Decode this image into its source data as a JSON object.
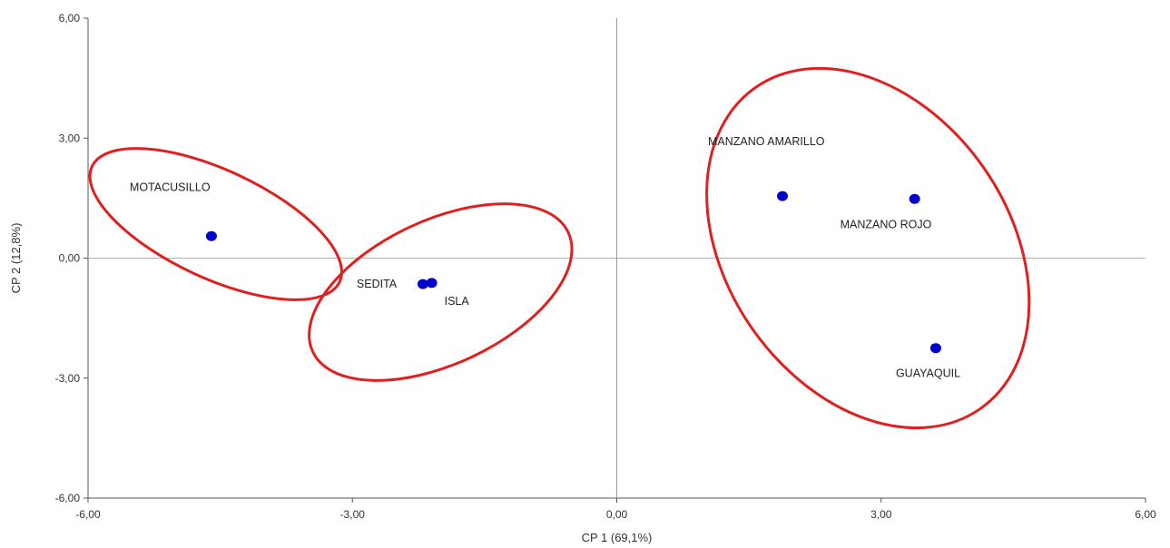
{
  "chart_data": {
    "type": "scatter",
    "title": "",
    "xlabel": "CP 1 (69,1%)",
    "ylabel": "CP 2 (12,8%)",
    "xlim": [
      -6,
      6
    ],
    "ylim": [
      -6,
      6
    ],
    "x_ticks": [
      "-6,00",
      "-3,00",
      "0,00",
      "3,00",
      "6,00"
    ],
    "y_ticks": [
      "-6,00",
      "-3,00",
      "0,00",
      "3,00",
      "6,00"
    ],
    "grid": false,
    "reference_lines": {
      "x": 0,
      "y": 0
    },
    "point_color": "#0000cc",
    "group_outline_color": "#e02020",
    "points": [
      {
        "label": "MOTACUSILLO",
        "x": -4.6,
        "y": 0.55
      },
      {
        "label": "SEDITA",
        "x": -2.2,
        "y": -0.65
      },
      {
        "label": "ISLA",
        "x": -2.1,
        "y": -0.62
      },
      {
        "label": "MANZANO AMARILLO",
        "x": 1.88,
        "y": 1.55
      },
      {
        "label": "MANZANO ROJO",
        "x": 3.38,
        "y": 1.48
      },
      {
        "label": "GUAYAQUIL",
        "x": 3.62,
        "y": -2.25
      }
    ],
    "groups": [
      {
        "members": [
          "MOTACUSILLO"
        ],
        "center": [
          -4.55,
          0.85
        ],
        "rx": 1.55,
        "ry": 1.35,
        "rotation_deg": 25
      },
      {
        "members": [
          "SEDITA",
          "ISLA"
        ],
        "center": [
          -2.0,
          -0.85
        ],
        "rx": 1.6,
        "ry": 1.8,
        "rotation_deg": -25
      },
      {
        "members": [
          "MANZANO AMARILLO",
          "MANZANO ROJO",
          "GUAYAQUIL"
        ],
        "center": [
          2.85,
          0.25
        ],
        "rx": 1.6,
        "ry": 4.9,
        "rotation_deg": -35
      }
    ]
  }
}
